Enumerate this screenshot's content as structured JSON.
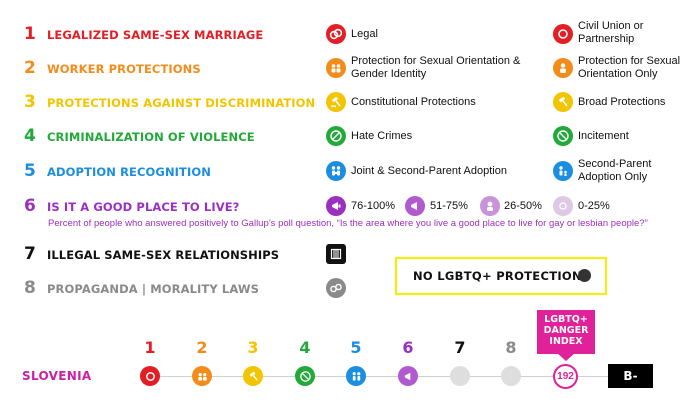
{
  "categories": [
    {
      "num": "1",
      "label": "LEGALIZED SAME-SEX MARRIAGE",
      "color": "#e31e24"
    },
    {
      "num": "2",
      "label": "WORKER PROTECTIONS",
      "color": "#f28c1b"
    },
    {
      "num": "3",
      "label": "PROTECTIONS AGAINST DISCRIMINATION",
      "color": "#f2c500"
    },
    {
      "num": "4",
      "label": "CRIMINALIZATION OF VIOLENCE",
      "color": "#22a93a"
    },
    {
      "num": "5",
      "label": "ADOPTION RECOGNITION",
      "color": "#1b8ee0"
    },
    {
      "num": "6",
      "label": "IS IT A GOOD PLACE TO LIVE?",
      "color": "#9b30c0"
    },
    {
      "num": "7",
      "label": "ILLEGAL SAME-SEX RELATIONSHIPS",
      "color": "#111111"
    },
    {
      "num": "8",
      "label": "PROPAGANDA | MORALITY LAWS",
      "color": "#8a8a8a"
    }
  ],
  "legend": {
    "marriage": {
      "a": "Legal",
      "b": "Civil Union or Partnership",
      "a_icon": "rings-icon",
      "b_icon": "rings-icon"
    },
    "worker": {
      "a": "Protection for Sexual Orientation & Gender Identity",
      "b": "Protection for Sexual Orientation Only",
      "a_icon": "people-icon",
      "b_icon": "person-icon"
    },
    "discrimination": {
      "a": "Constitutional Protections",
      "b": "Broad Protections",
      "a_icon": "gavel-icon",
      "b_icon": "gavel-icon"
    },
    "violence": {
      "a": "Hate Crimes",
      "b": "Incitement",
      "a_icon": "hate-icon",
      "b_icon": "no-entry-icon"
    },
    "adoption": {
      "a": "Joint & Second-Parent Adoption",
      "b": "Second-Parent Adoption Only",
      "a_icon": "family-icon",
      "b_icon": "family-icon"
    },
    "good_place": {
      "items": [
        "76-100%",
        "51-75%",
        "26-50%",
        "0-25%"
      ],
      "note": "Percent of people who answered positively to Gallup’s poll question, “Is the area where you live a good place to live for gay or lesbian people?”"
    },
    "illegal_icon": "jail-icon",
    "propaganda_icon": "handcuffs-icon"
  },
  "no_protections": "NO LGBTQ+ PROTECTIONS",
  "scorecard": {
    "country": "SLOVENIA",
    "columns": [
      "1",
      "2",
      "3",
      "4",
      "5",
      "6",
      "7",
      "8"
    ],
    "danger_label": "LGBTQ+ DANGER INDEX",
    "danger_index": "192",
    "grade": "B-"
  }
}
